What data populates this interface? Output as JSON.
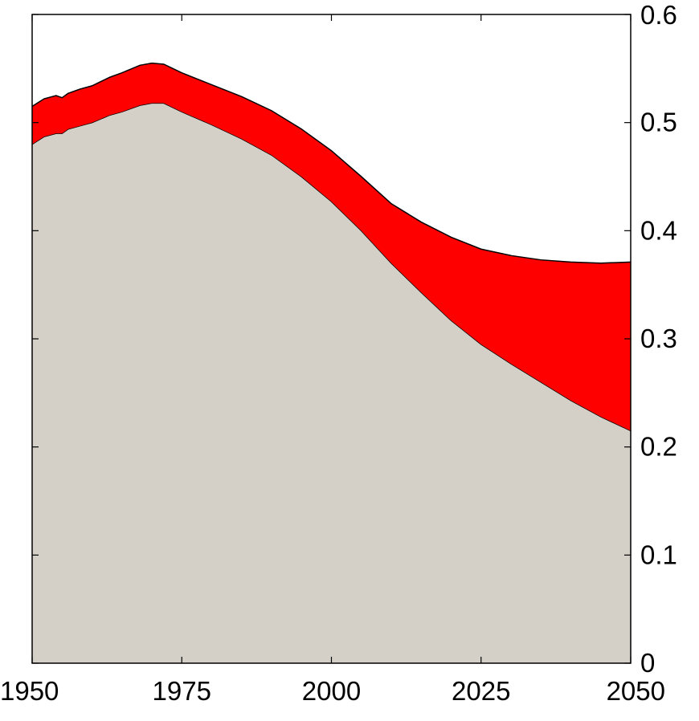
{
  "chart_data": {
    "type": "area",
    "stacked": true,
    "x_ticks": [
      "1950",
      "1975",
      "2000",
      "2025",
      "2050"
    ],
    "y_ticks": [
      "0",
      "0.1",
      "0.2",
      "0.3",
      "0.4",
      "0.5",
      "0.6"
    ],
    "xlim": [
      1950,
      2050
    ],
    "ylim": [
      0,
      0.6
    ],
    "y_axis_side": "right",
    "grid": false,
    "x": [
      1950,
      1952,
      1954,
      1955,
      1956,
      1958,
      1960,
      1963,
      1965,
      1968,
      1970,
      1972,
      1975,
      1980,
      1985,
      1990,
      1995,
      2000,
      2005,
      2010,
      2015,
      2020,
      2025,
      2030,
      2035,
      2040,
      2045,
      2050
    ],
    "series": [
      {
        "color": "#d4d0c8",
        "values": [
          0.48,
          0.487,
          0.49,
          0.49,
          0.494,
          0.497,
          0.5,
          0.507,
          0.51,
          0.516,
          0.518,
          0.518,
          0.51,
          0.498,
          0.485,
          0.47,
          0.45,
          0.427,
          0.4,
          0.37,
          0.343,
          0.317,
          0.295,
          0.277,
          0.26,
          0.243,
          0.228,
          0.215
        ]
      },
      {
        "color": "#ff0000",
        "values": [
          0.035,
          0.035,
          0.035,
          0.033,
          0.033,
          0.034,
          0.034,
          0.035,
          0.036,
          0.037,
          0.037,
          0.036,
          0.036,
          0.037,
          0.039,
          0.041,
          0.044,
          0.047,
          0.05,
          0.055,
          0.065,
          0.077,
          0.088,
          0.1,
          0.113,
          0.128,
          0.142,
          0.156
        ]
      }
    ]
  }
}
